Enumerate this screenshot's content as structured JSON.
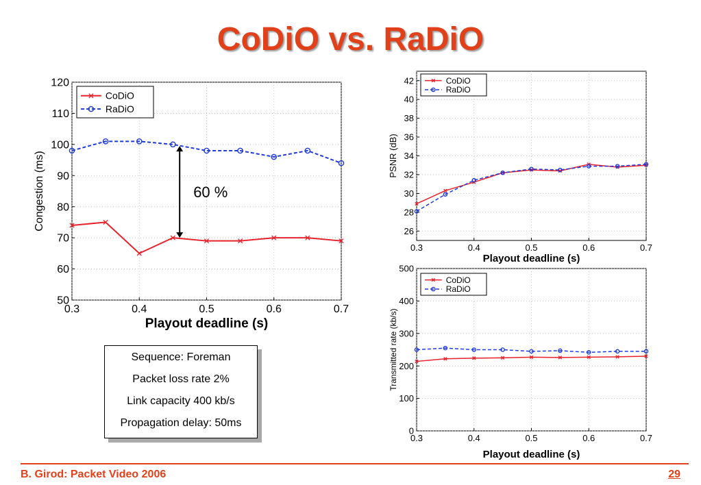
{
  "slide": {
    "title": "CoDiO vs. RaDiO",
    "footer_left": "B. Girod: Packet Video 2006",
    "page_number": "29",
    "accent_color": "#e0401a"
  },
  "info_box": {
    "lines": [
      "Sequence: Foreman",
      "Packet loss rate 2%",
      "Link capacity 400 kb/s",
      "Propagation delay: 50ms"
    ]
  },
  "chart_data": [
    {
      "type": "line",
      "xlabel": "Playout deadline (s)",
      "ylabel": "Congestion (ms)",
      "xlim": [
        0.3,
        0.7
      ],
      "ylim": [
        50,
        120
      ],
      "xticks": [
        "0.3",
        "0.4",
        "0.5",
        "0.6",
        "0.7"
      ],
      "yticks": [
        "50",
        "60",
        "70",
        "80",
        "90",
        "100",
        "110",
        "120"
      ],
      "grid": true,
      "legend": "top-left",
      "x": [
        0.3,
        0.35,
        0.4,
        0.45,
        0.5,
        0.55,
        0.6,
        0.65,
        0.7
      ],
      "series": [
        {
          "name": "CoDiO",
          "color": "#e8202a",
          "values": [
            74,
            75,
            65,
            70,
            69,
            69,
            70,
            70,
            69
          ]
        },
        {
          "name": "RaDiO",
          "color": "#1f3ad8",
          "values": [
            98,
            101,
            101,
            100,
            98,
            98,
            96,
            98,
            94
          ]
        }
      ],
      "annotation": {
        "text": "60 %",
        "x": 0.46,
        "y_from": 70,
        "y_to": 99.5
      }
    },
    {
      "type": "line",
      "xlabel": "Playout deadline (s)",
      "ylabel": "PSNR (dB)",
      "xlim": [
        0.3,
        0.7
      ],
      "ylim": [
        25,
        43
      ],
      "xticks": [
        "0.3",
        "0.4",
        "0.5",
        "0.6",
        "0.7"
      ],
      "yticks": [
        "26",
        "28",
        "30",
        "32",
        "34",
        "36",
        "38",
        "40",
        "42"
      ],
      "grid": true,
      "legend": "top-left",
      "x": [
        0.3,
        0.35,
        0.4,
        0.45,
        0.5,
        0.55,
        0.6,
        0.65,
        0.7
      ],
      "series": [
        {
          "name": "CoDiO",
          "color": "#e8202a",
          "values": [
            28.9,
            30.3,
            31.2,
            32.2,
            32.5,
            32.4,
            33.1,
            32.8,
            33.0
          ]
        },
        {
          "name": "RaDiO",
          "color": "#1f3ad8",
          "values": [
            28.1,
            29.9,
            31.4,
            32.2,
            32.6,
            32.5,
            32.9,
            32.9,
            33.1
          ]
        }
      ]
    },
    {
      "type": "line",
      "xlabel": "Playout deadline (s)",
      "ylabel": "Transmitted rate (kb/s)",
      "xlim": [
        0.3,
        0.7
      ],
      "ylim": [
        0,
        500
      ],
      "xticks": [
        "0.3",
        "0.4",
        "0.5",
        "0.6",
        "0.7"
      ],
      "yticks": [
        "0",
        "100",
        "200",
        "300",
        "400",
        "500"
      ],
      "grid": true,
      "legend": "top-left",
      "x": [
        0.3,
        0.35,
        0.4,
        0.45,
        0.5,
        0.55,
        0.6,
        0.65,
        0.7
      ],
      "series": [
        {
          "name": "CoDiO",
          "color": "#e8202a",
          "values": [
            214,
            222,
            224,
            225,
            227,
            226,
            227,
            228,
            230
          ]
        },
        {
          "name": "RaDiO",
          "color": "#1f3ad8",
          "values": [
            250,
            255,
            250,
            250,
            245,
            247,
            242,
            245,
            245
          ]
        }
      ]
    }
  ]
}
